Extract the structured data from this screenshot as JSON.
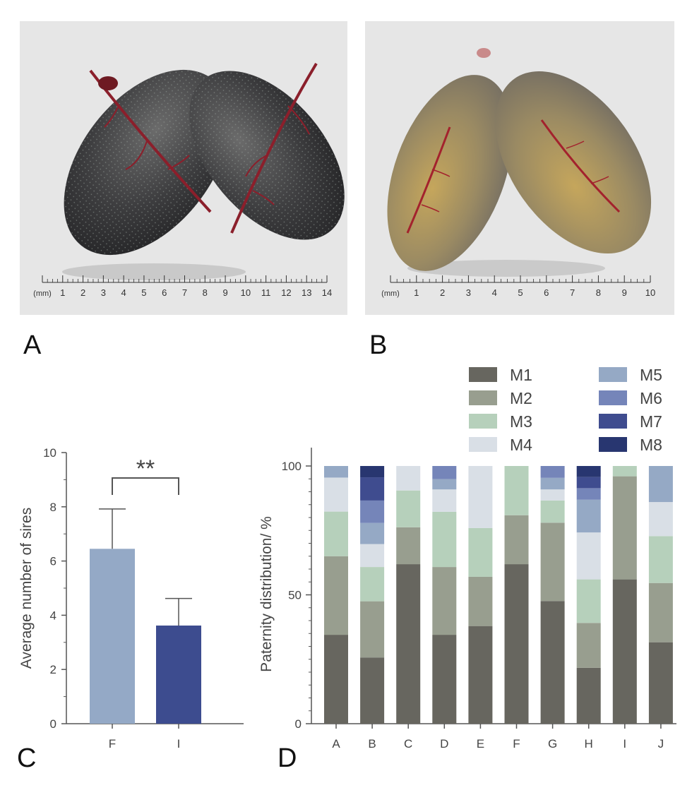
{
  "panels": {
    "A": {
      "label": "A",
      "scale_unit": "(mm)",
      "scale_ticks": [
        "1",
        "2",
        "3",
        "4",
        "5",
        "6",
        "7",
        "8",
        "9",
        "10",
        "11",
        "12",
        "13",
        "14"
      ]
    },
    "B": {
      "label": "B",
      "scale_unit": "(mm)",
      "scale_ticks": [
        "1",
        "2",
        "3",
        "4",
        "5",
        "6",
        "7",
        "8",
        "9",
        "10"
      ]
    },
    "C": {
      "label": "C"
    },
    "D": {
      "label": "D"
    }
  },
  "colors": {
    "M1": "#67665f",
    "M2": "#989e8f",
    "M3": "#b6d0bb",
    "M4": "#d9dfe6",
    "M5": "#95a9c5",
    "M6": "#7585b9",
    "M7": "#3f4c8f",
    "M8": "#283670",
    "F": "#94a9c6",
    "I": "#3d4c8f"
  },
  "chart_data": [
    {
      "type": "bar",
      "panel": "C",
      "categories": [
        "F",
        "I"
      ],
      "values": [
        6.45,
        3.62
      ],
      "error_upper": [
        7.92,
        4.62
      ],
      "ylabel": "Average number of sires",
      "ylim": [
        0,
        10
      ],
      "yticks": [
        "0",
        "2",
        "4",
        "6",
        "8",
        "10"
      ],
      "significance": "**"
    },
    {
      "type": "bar",
      "panel": "D",
      "stacked": true,
      "categories": [
        "A",
        "B",
        "C",
        "D",
        "E",
        "F",
        "G",
        "H",
        "I",
        "J"
      ],
      "ylabel": "Paternity distribution/ %",
      "ylim": [
        0,
        100
      ],
      "yticks": [
        "0",
        "50",
        "100"
      ],
      "legend_position": "top-right",
      "series": [
        {
          "name": "M1",
          "values": [
            34.5,
            25.7,
            61.9,
            34.5,
            37.9,
            61.9,
            47.6,
            21.7,
            56.0,
            31.6
          ]
        },
        {
          "name": "M2",
          "values": [
            30.5,
            21.8,
            14.3,
            26.3,
            19.1,
            19.0,
            30.4,
            17.4,
            40.0,
            23.0
          ]
        },
        {
          "name": "M3",
          "values": [
            17.3,
            13.3,
            14.3,
            21.4,
            18.9,
            19.1,
            8.6,
            16.9,
            4.0,
            18.2
          ]
        },
        {
          "name": "M4",
          "values": [
            13.2,
            8.9,
            9.5,
            8.7,
            24.1,
            0,
            4.3,
            18.2,
            0,
            13.2
          ]
        },
        {
          "name": "M5",
          "values": [
            4.5,
            8.2,
            0,
            4.0,
            0,
            0,
            4.5,
            12.7,
            0,
            14.0
          ]
        },
        {
          "name": "M6",
          "values": [
            0,
            8.7,
            0,
            5.1,
            0,
            0,
            4.6,
            4.5,
            0,
            0
          ]
        },
        {
          "name": "M7",
          "values": [
            0,
            9.0,
            0,
            0,
            0,
            0,
            0,
            4.3,
            0,
            0
          ]
        },
        {
          "name": "M8",
          "values": [
            0,
            4.4,
            0,
            0,
            0,
            0,
            0,
            4.3,
            0,
            0
          ]
        }
      ]
    }
  ]
}
